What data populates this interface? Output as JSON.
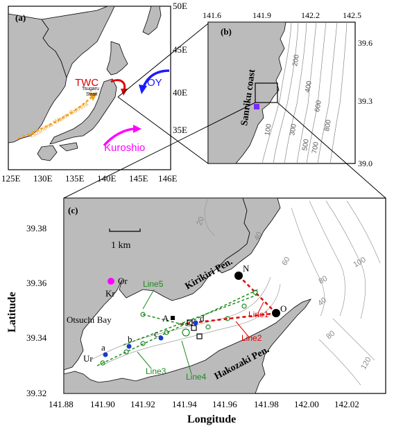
{
  "panel_a": {
    "label": "(a)",
    "x_ticks": [
      "125E",
      "130E",
      "135E",
      "140E",
      "145E",
      "146E"
    ],
    "y_ticks": [
      "50E",
      "45E",
      "40E",
      "35E"
    ],
    "currents": {
      "twc": "TWC",
      "oy": "OY",
      "kuroshio": "Kuroshio",
      "tsushima": "Tsushima Warm Current"
    },
    "tsugaru_line1": "Tsugaru",
    "tsugaru_line2": "Strait",
    "colors": {
      "twc": "#e00000",
      "oy": "#1a1aff",
      "kuroshio": "#ff00ff",
      "tsushima": "#f0a020"
    }
  },
  "panel_b": {
    "label": "(b)",
    "x_ticks": [
      "141.6",
      "141.9",
      "142.2",
      "142.5"
    ],
    "y_ticks": [
      "39.6",
      "39.3",
      "39.0"
    ],
    "coast_label": "Sanriku coast",
    "contours": [
      "200",
      "400",
      "600",
      "800",
      "300",
      "500",
      "700",
      "100"
    ]
  },
  "panel_c": {
    "label": "(c)",
    "xlabel": "Longitude",
    "ylabel": "Latitude",
    "x_ticks": [
      "141.88",
      "141.90",
      "141.92",
      "141.94",
      "141.96",
      "141.98",
      "142.00",
      "142.02"
    ],
    "y_ticks": [
      "39.38",
      "39.36",
      "39.34",
      "39.32"
    ],
    "scale_label": "1 km",
    "place_labels": {
      "kirikiri": "Kirikiri Pen.",
      "hakozaki": "Hakozaki Pen.",
      "otsuchi": "Otsuchi Bay"
    },
    "contours": [
      "20",
      "40",
      "60",
      "80",
      "100",
      "120",
      "40",
      "80"
    ],
    "lines": [
      "Line1",
      "Line2",
      "Line3",
      "Line4",
      "Line5"
    ],
    "stations": [
      "N",
      "O",
      "Or",
      "Kr",
      "Ur",
      "a",
      "b",
      "c",
      "d",
      "A"
    ],
    "colors": {
      "red_line": "#e00000",
      "green_line": "#1a8a1a",
      "magenta": "#ff00ff",
      "blue": "#1a3acc"
    }
  }
}
